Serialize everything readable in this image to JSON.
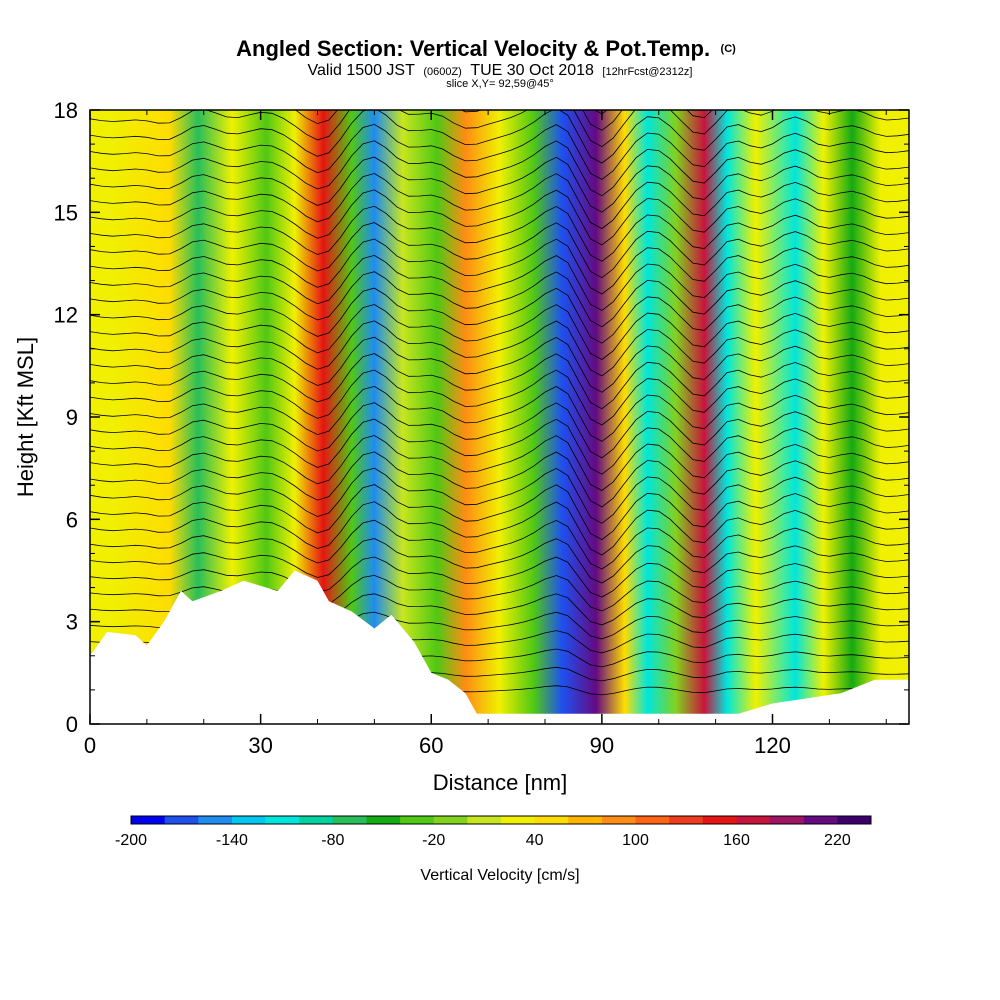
{
  "header": {
    "title_main": "Angled Section: Vertical Velocity & Pot.Temp.",
    "title_unit": "(C)",
    "valid_a": "Valid 1500 JST",
    "valid_b": "(0600Z)",
    "valid_c": "TUE 30 Oct 2018",
    "valid_d": "[12hrFcst@2312z]",
    "slice": "slice X,Y= 92,59@45°"
  },
  "chart_data": {
    "type": "heatmap",
    "xlabel": "Distance [nm]",
    "ylabel": "Height [Kft MSL]",
    "xlim": [
      0,
      144
    ],
    "ylim": [
      0,
      18
    ],
    "x_ticks": [
      0,
      30,
      60,
      90,
      120
    ],
    "x_tick_labels": [
      "0",
      "30",
      "60",
      "90",
      "120"
    ],
    "y_ticks": [
      0,
      3,
      6,
      9,
      12,
      15,
      18
    ],
    "y_tick_labels": [
      "0",
      "3",
      "6",
      "9",
      "12",
      "15",
      "18"
    ],
    "colorbar": {
      "label": "Vertical Velocity [cm/s]",
      "min": -200,
      "max": 240,
      "step": 20,
      "tick_values": [
        -200,
        -140,
        -80,
        -20,
        40,
        100,
        160,
        220
      ],
      "tick_labels": [
        "-200",
        "-140",
        "-80",
        "-20",
        "40",
        "100",
        "160",
        "220"
      ],
      "colors": [
        "#0000f0",
        "#1e50f0",
        "#1e8cf0",
        "#00c8f0",
        "#00e6dc",
        "#00d2a0",
        "#28be5a",
        "#14aa14",
        "#50c814",
        "#82d21e",
        "#c8e61e",
        "#f0f000",
        "#ffdc00",
        "#ffb400",
        "#ff8c14",
        "#ff6414",
        "#f03c1e",
        "#e61414",
        "#c8143c",
        "#a01464",
        "#640a82",
        "#3c006e"
      ]
    },
    "w_bands": [
      {
        "x": 4,
        "w": 30
      },
      {
        "x": 14,
        "w": 55
      },
      {
        "x": 19,
        "w": -65
      },
      {
        "x": 25,
        "w": 20
      },
      {
        "x": 31,
        "w": -40
      },
      {
        "x": 36,
        "w": 30
      },
      {
        "x": 41,
        "w": 150
      },
      {
        "x": 46,
        "w": -40
      },
      {
        "x": 50,
        "w": -150
      },
      {
        "x": 55,
        "w": 15
      },
      {
        "x": 61,
        "w": -40
      },
      {
        "x": 66,
        "w": 80
      },
      {
        "x": 72,
        "w": 20
      },
      {
        "x": 78,
        "w": -30
      },
      {
        "x": 83,
        "w": -170
      },
      {
        "x": 89,
        "w": 200
      },
      {
        "x": 94,
        "w": 40
      },
      {
        "x": 98,
        "w": -120
      },
      {
        "x": 103,
        "w": -20
      },
      {
        "x": 108,
        "w": 160
      },
      {
        "x": 112,
        "w": -110
      },
      {
        "x": 117,
        "w": 20
      },
      {
        "x": 124,
        "w": -110
      },
      {
        "x": 129,
        "w": 20
      },
      {
        "x": 134,
        "w": -60
      },
      {
        "x": 139,
        "w": 30
      }
    ],
    "terrain": [
      {
        "x": 0,
        "h": 2.0
      },
      {
        "x": 3,
        "h": 2.7
      },
      {
        "x": 8,
        "h": 2.6
      },
      {
        "x": 10,
        "h": 2.3
      },
      {
        "x": 13,
        "h": 3.0
      },
      {
        "x": 16,
        "h": 3.9
      },
      {
        "x": 18,
        "h": 3.6
      },
      {
        "x": 23,
        "h": 3.9
      },
      {
        "x": 27,
        "h": 4.2
      },
      {
        "x": 33,
        "h": 3.9
      },
      {
        "x": 36,
        "h": 4.5
      },
      {
        "x": 40,
        "h": 4.2
      },
      {
        "x": 42,
        "h": 3.6
      },
      {
        "x": 46,
        "h": 3.3
      },
      {
        "x": 50,
        "h": 2.8
      },
      {
        "x": 53,
        "h": 3.2
      },
      {
        "x": 57,
        "h": 2.4
      },
      {
        "x": 60,
        "h": 1.5
      },
      {
        "x": 63,
        "h": 1.3
      },
      {
        "x": 66,
        "h": 0.9
      },
      {
        "x": 68,
        "h": 0.3
      },
      {
        "x": 80,
        "h": 0.3
      },
      {
        "x": 100,
        "h": 0.3
      },
      {
        "x": 114,
        "h": 0.3
      },
      {
        "x": 120,
        "h": 0.6
      },
      {
        "x": 132,
        "h": 0.9
      },
      {
        "x": 138,
        "h": 1.3
      },
      {
        "x": 144,
        "h": 1.3
      }
    ]
  }
}
